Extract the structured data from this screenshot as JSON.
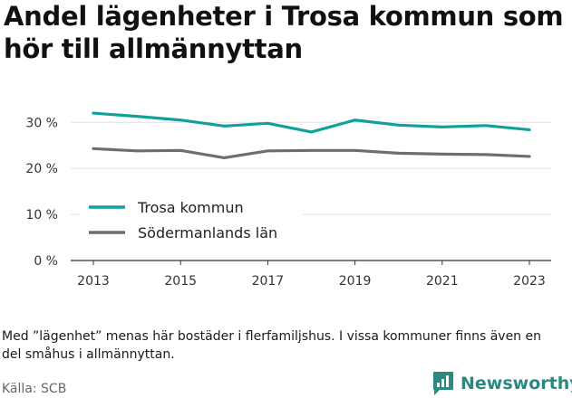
{
  "title": "Andel lägenheter i Trosa kommun som hör till allmännyttan",
  "note": "Med ”lägenhet” menas här bostäder i flerfamiljshus. I vissa kommuner finns även en del småhus i allmännyttan.",
  "source": "Källa: SCB",
  "brand": {
    "name": "Newsworthy",
    "logo_icon": "bar-chart-logo-icon"
  },
  "colors": {
    "trosa": "#12a19a",
    "sodermanland": "#6e6d70",
    "grid": "#e0e0e0",
    "brand": "#2a8a80"
  },
  "chart_data": {
    "type": "line",
    "x": [
      2013,
      2014,
      2015,
      2016,
      2017,
      2018,
      2019,
      2020,
      2021,
      2022,
      2023
    ],
    "xticks": [
      "2013",
      "2015",
      "2017",
      "2019",
      "2021",
      "2023"
    ],
    "xtick_values": [
      2013,
      2015,
      2017,
      2019,
      2021,
      2023
    ],
    "yticks": [
      "0 %",
      "10 %",
      "20 %",
      "30 %"
    ],
    "ytick_values": [
      0,
      10,
      20,
      30
    ],
    "ylim": [
      0,
      33
    ],
    "xlim": [
      2013,
      2023
    ],
    "grid": true,
    "legend_position": "bottom-left",
    "series": [
      {
        "name": "Trosa kommun",
        "color": "#12a19a",
        "values": [
          32.0,
          31.3,
          30.5,
          29.2,
          29.8,
          27.9,
          30.5,
          29.4,
          29.0,
          29.3,
          28.4
        ]
      },
      {
        "name": "Södermanlands län",
        "color": "#6e6d70",
        "values": [
          24.3,
          23.8,
          23.9,
          22.3,
          23.8,
          23.9,
          23.9,
          23.3,
          23.1,
          23.0,
          22.6
        ]
      }
    ]
  }
}
